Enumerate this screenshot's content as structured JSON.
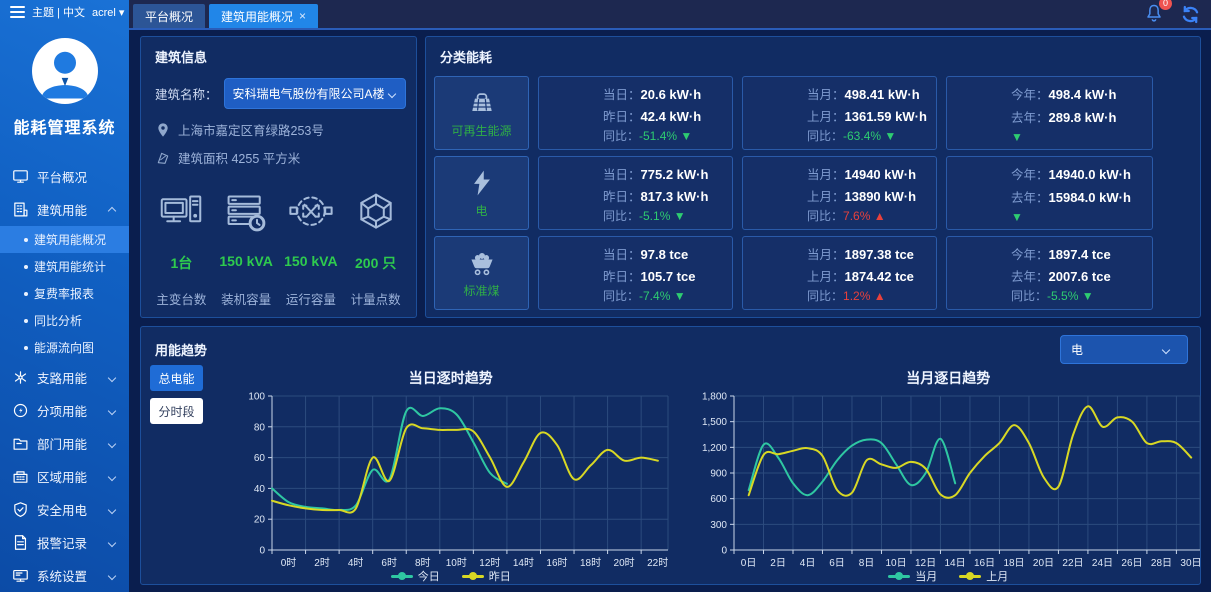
{
  "colors": {
    "accent": "#2186e8",
    "green": "#2ecc71",
    "red": "#e8413c",
    "teal": "#2fc7a2",
    "yellow": "#d8d824",
    "sidebar_blue": "#1161c4"
  },
  "topbar": {
    "theme_label": "主题 | 中文",
    "username": "acrel",
    "user_caret": "▾",
    "tabs": [
      {
        "label": "平台概况"
      },
      {
        "label": "建筑用能概况",
        "close": "×"
      }
    ],
    "notification_count": "0"
  },
  "sidebar": {
    "app_title": "能耗管理系统",
    "items": [
      {
        "label": "平台概况",
        "icon": "monitor-icon"
      },
      {
        "label": "建筑用能",
        "icon": "building-icon",
        "expanded": true
      },
      {
        "label": "支路用能",
        "icon": "branch-icon"
      },
      {
        "label": "分项用能",
        "icon": "dial-icon"
      },
      {
        "label": "部门用能",
        "icon": "folder-icon"
      },
      {
        "label": "区域用能",
        "icon": "region-icon"
      },
      {
        "label": "安全用电",
        "icon": "shield-icon"
      },
      {
        "label": "报警记录",
        "icon": "document-icon"
      },
      {
        "label": "系统设置",
        "icon": "settings-icon"
      }
    ],
    "sub_items": [
      {
        "label": "建筑用能概况",
        "active": true
      },
      {
        "label": "建筑用能统计"
      },
      {
        "label": "复费率报表"
      },
      {
        "label": "同比分析"
      },
      {
        "label": "能源流向图"
      }
    ]
  },
  "building": {
    "panel_title": "建筑信息",
    "name_label": "建筑名称：",
    "name_value": "安科瑞电气股份有限公司A楼",
    "address": "上海市嘉定区育绿路253号",
    "area": "建筑面积 4255 平方米",
    "stats": [
      {
        "value": "1台",
        "label": "主变台数",
        "icon": "computer-icon"
      },
      {
        "value": "150 kVA",
        "label": "装机容量",
        "icon": "server-clock-icon"
      },
      {
        "value": "150 kVA",
        "label": "运行容量",
        "icon": "exchange-icon"
      },
      {
        "value": "200 只",
        "label": "计量点数",
        "icon": "mesh-icon"
      }
    ]
  },
  "category": {
    "panel_title": "分类能耗",
    "rows": [
      {
        "name": "可再生能源",
        "icon": "solar-bag-icon",
        "cards": [
          {
            "l1": "当日：",
            "v1": "20.6 kW·h",
            "l2": "昨日：",
            "v2": "42.4 kW·h",
            "cl": "同比：",
            "cv": "-51.4%",
            "arrow": "▼",
            "dir": "down"
          },
          {
            "l1": "当月：",
            "v1": "498.41 kW·h",
            "l2": "上月：",
            "v2": "1361.59 kW·h",
            "cl": "同比：",
            "cv": "-63.4%",
            "arrow": "▼",
            "dir": "down"
          },
          {
            "l1": "今年：",
            "v1": "498.4 kW·h",
            "l2": "去年：",
            "v2": "289.8 kW·h",
            "cl": "",
            "cv": "",
            "arrow": "▼",
            "dir": "down"
          }
        ]
      },
      {
        "name": "电",
        "icon": "bolt-icon",
        "cards": [
          {
            "l1": "当日：",
            "v1": "775.2 kW·h",
            "l2": "昨日：",
            "v2": "817.3 kW·h",
            "cl": "同比：",
            "cv": "-5.1%",
            "arrow": "▼",
            "dir": "down"
          },
          {
            "l1": "当月：",
            "v1": "14940 kW·h",
            "l2": "上月：",
            "v2": "13890 kW·h",
            "cl": "同比：",
            "cv": "7.6%",
            "arrow": "▲",
            "dir": "up"
          },
          {
            "l1": "今年：",
            "v1": "14940.0 kW·h",
            "l2": "去年：",
            "v2": "15984.0 kW·h",
            "cl": "",
            "cv": "",
            "arrow": "▼",
            "dir": "down"
          }
        ]
      },
      {
        "name": "标准煤",
        "icon": "coal-cart-icon",
        "cards": [
          {
            "l1": "当日：",
            "v1": "97.8 tce",
            "l2": "昨日：",
            "v2": "105.7 tce",
            "cl": "同比：",
            "cv": "-7.4%",
            "arrow": "▼",
            "dir": "down"
          },
          {
            "l1": "当月：",
            "v1": "1897.38 tce",
            "l2": "上月：",
            "v2": "1874.42 tce",
            "cl": "同比：",
            "cv": "1.2%",
            "arrow": "▲",
            "dir": "up"
          },
          {
            "l1": "今年：",
            "v1": "1897.4 tce",
            "l2": "去年：",
            "v2": "2007.6 tce",
            "cl": "同比：",
            "cv": "-5.5%",
            "arrow": "▼",
            "dir": "down"
          }
        ]
      }
    ]
  },
  "trend": {
    "panel_title": "用能趋势",
    "select_value": "电",
    "buttons": [
      {
        "label": "总电能",
        "active": true
      },
      {
        "label": "分时段",
        "active": false
      }
    ]
  },
  "chart_data": [
    {
      "type": "line",
      "title": "当日逐时趋势",
      "xlabel": "时",
      "ylabel": "",
      "x_max": 23.6,
      "x_ticks": [
        0,
        2,
        4,
        6,
        8,
        10,
        12,
        14,
        16,
        18,
        20,
        22
      ],
      "x_tick_labels": [
        "0时",
        "2时",
        "4时",
        "6时",
        "8时",
        "10时",
        "12时",
        "14时",
        "16时",
        "18时",
        "20时",
        "22时"
      ],
      "ylim": [
        0,
        100
      ],
      "y_ticks": [
        0,
        20,
        40,
        60,
        80,
        100
      ],
      "y_tick_labels": [
        "0",
        "20",
        "40",
        "60",
        "80",
        "100"
      ],
      "grid": true,
      "legend_position": "bottom",
      "series": [
        {
          "name": "今日",
          "color": "#2fc7a2",
          "x": [
            0,
            1,
            2,
            3,
            4,
            5,
            6,
            7,
            8,
            9,
            10,
            11,
            12,
            13,
            14
          ],
          "values": [
            40,
            31,
            28,
            27,
            26,
            29,
            52,
            46,
            90,
            87,
            92,
            88,
            70,
            50,
            43
          ]
        },
        {
          "name": "昨日",
          "color": "#d8d824",
          "x": [
            0,
            1,
            2,
            3,
            4,
            5,
            6,
            7,
            8,
            9,
            10,
            11,
            12,
            13,
            14,
            15,
            16,
            17,
            18,
            19,
            20,
            21,
            22,
            23
          ],
          "values": [
            32,
            29,
            27,
            26,
            26,
            27,
            60,
            45,
            79,
            79,
            78,
            78,
            77,
            60,
            41,
            57,
            76,
            68,
            46,
            55,
            65,
            58,
            60,
            58
          ]
        }
      ]
    },
    {
      "type": "line",
      "title": "当月逐日趋势",
      "xlabel": "日",
      "ylabel": "",
      "x_max": 31.6,
      "x_ticks": [
        0,
        2,
        4,
        6,
        8,
        10,
        12,
        14,
        16,
        18,
        20,
        22,
        24,
        26,
        28,
        30
      ],
      "x_tick_labels": [
        "0日",
        "2日",
        "4日",
        "6日",
        "8日",
        "10日",
        "12日",
        "14日",
        "16日",
        "18日",
        "20日",
        "22日",
        "24日",
        "26日",
        "28日",
        "30日"
      ],
      "ylim": [
        0,
        1800
      ],
      "y_ticks": [
        0,
        300,
        600,
        900,
        1200,
        1500,
        1800
      ],
      "y_tick_labels": [
        "0",
        "300",
        "600",
        "900",
        "1,200",
        "1,500",
        "1,800"
      ],
      "grid": true,
      "legend_position": "bottom",
      "series": [
        {
          "name": "当月",
          "color": "#2fc7a2",
          "x": [
            1,
            2,
            3,
            4,
            5,
            6,
            7,
            8,
            9,
            10,
            11,
            12,
            13,
            14,
            15
          ],
          "values": [
            700,
            1230,
            1080,
            780,
            640,
            800,
            1050,
            1220,
            1290,
            1250,
            1000,
            760,
            900,
            1300,
            780
          ]
        },
        {
          "name": "上月",
          "color": "#d8d824",
          "x": [
            1,
            2,
            3,
            4,
            5,
            6,
            7,
            8,
            9,
            10,
            11,
            12,
            13,
            14,
            15,
            16,
            17,
            18,
            19,
            20,
            21,
            22,
            23,
            24,
            25,
            26,
            27,
            28,
            29,
            30,
            31
          ],
          "values": [
            640,
            1110,
            1120,
            1160,
            1190,
            1100,
            700,
            670,
            1050,
            1000,
            960,
            1030,
            950,
            650,
            640,
            900,
            1100,
            1250,
            1460,
            1250,
            850,
            740,
            1350,
            1680,
            1440,
            1550,
            1500,
            1250,
            1270,
            1250,
            1080
          ]
        }
      ]
    }
  ]
}
